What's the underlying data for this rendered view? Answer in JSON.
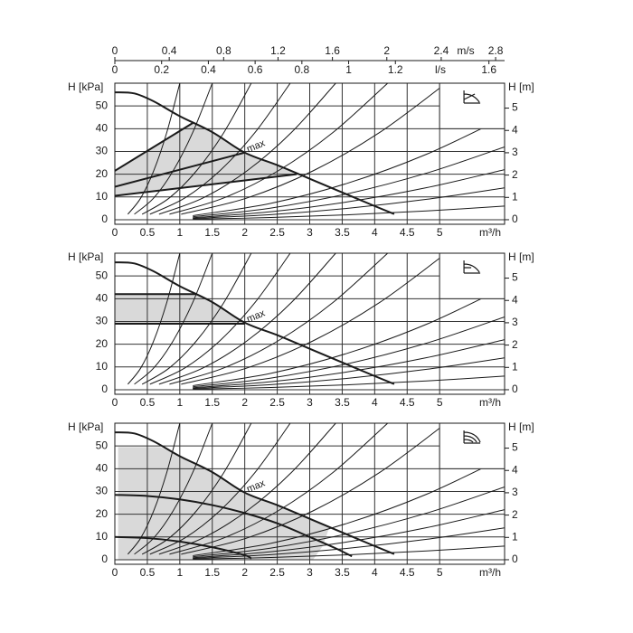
{
  "top_axes": [
    {
      "unit": "m/s",
      "xlim": [
        0,
        2.866
      ],
      "xticks": [
        0,
        0.4,
        0.8,
        1.2,
        1.6,
        2,
        2.4,
        2.8
      ]
    },
    {
      "unit": "l/s",
      "xlim": [
        0,
        1.667
      ],
      "xticks": [
        0,
        0.2,
        0.4,
        0.6,
        0.8,
        1,
        1.2,
        1.6
      ]
    }
  ],
  "system_curves": [
    {
      "x": [
        0.2,
        0.4,
        0.6,
        0.8,
        1.0
      ],
      "y": [
        2.4,
        9.6,
        21.6,
        38.4,
        60
      ]
    },
    {
      "x": [
        0.3,
        0.6,
        0.9,
        1.2,
        1.5
      ],
      "y": [
        2.4,
        9.6,
        21.6,
        38.4,
        60
      ]
    },
    {
      "x": [
        0.42,
        0.84,
        1.26,
        1.68,
        2.1
      ],
      "y": [
        2.4,
        9.6,
        21.6,
        38.4,
        60
      ]
    },
    {
      "x": [
        0.54,
        1.08,
        1.62,
        2.16,
        2.7
      ],
      "y": [
        2.4,
        9.6,
        21.6,
        38.4,
        60
      ]
    },
    {
      "x": [
        0.68,
        1.36,
        2.04,
        2.72,
        3.4
      ],
      "y": [
        2.4,
        9.6,
        21.6,
        38.4,
        60
      ]
    },
    {
      "x": [
        0.84,
        1.68,
        2.52,
        3.36,
        4.2
      ],
      "y": [
        2.4,
        9.6,
        21.6,
        38.4,
        60
      ]
    },
    {
      "x": [
        1.02,
        2.04,
        3.06,
        4.08,
        5.1
      ],
      "y": [
        2.4,
        9.6,
        21.6,
        38.4,
        60
      ]
    },
    {
      "x": [
        1.2,
        2.4,
        3.6,
        4.8,
        6.0
      ],
      "y": [
        1.8,
        7.2,
        16.2,
        28.8,
        45
      ]
    },
    {
      "x": [
        1.2,
        2.4,
        3.6,
        4.8,
        6.0
      ],
      "y": [
        1.28,
        5.12,
        11.52,
        20.48,
        32
      ]
    },
    {
      "x": [
        1.2,
        2.4,
        3.6,
        4.8,
        6.0
      ],
      "y": [
        0.88,
        3.52,
        7.92,
        14.08,
        22
      ]
    },
    {
      "x": [
        1.2,
        2.4,
        3.6,
        4.8,
        6.0
      ],
      "y": [
        0.56,
        2.24,
        5.04,
        8.96,
        14
      ]
    },
    {
      "x": [
        1.2,
        2.4,
        3.6,
        4.8,
        6.0
      ],
      "y": [
        0.24,
        0.96,
        2.16,
        3.84,
        6
      ]
    }
  ],
  "chart_data": [
    {
      "type": "line",
      "xlabel": "m³/h",
      "ylabel": "H [kPa]",
      "y2label": "H [m]",
      "curve_label": "max",
      "xlim": [
        0,
        6
      ],
      "xticks": [
        0,
        0.5,
        1,
        1.5,
        2,
        2.5,
        3,
        3.5,
        4,
        4.5,
        5
      ],
      "ylim": [
        -2,
        60
      ],
      "yticks": [
        0,
        10,
        20,
        30,
        40,
        50
      ],
      "y2lim": [
        -0.204,
        6.116
      ],
      "y2ticks": [
        0,
        1,
        2,
        3,
        4,
        5
      ],
      "grid": true,
      "areas": [
        {
          "color": "#d9d9d9",
          "x": [
            0,
            0,
            1.2,
            1.5,
            2,
            2.5,
            2.8
          ],
          "y": [
            10.5,
            21.5,
            42.5,
            38.5,
            29.5,
            24,
            20
          ]
        }
      ],
      "series": [
        {
          "color": "#1a1a1a",
          "x": [
            0,
            0.3,
            0.6,
            1,
            1.5,
            2,
            2.5,
            3,
            3.5,
            4,
            4.3
          ],
          "values": [
            56,
            55.5,
            52,
            45.5,
            38.5,
            29.5,
            24,
            18,
            12,
            6,
            2.5
          ]
        },
        {
          "color": "#1a1a1a",
          "x": [
            0,
            1.2
          ],
          "values": [
            21.5,
            42.5
          ]
        },
        {
          "color": "#1a1a1a",
          "x": [
            0,
            2
          ],
          "values": [
            14.5,
            29.5
          ]
        },
        {
          "color": "#1a1a1a",
          "x": [
            0,
            2.8
          ],
          "values": [
            10.5,
            20
          ]
        }
      ]
    },
    {
      "type": "line",
      "xlabel": "m³/h",
      "ylabel": "H [kPa]",
      "y2label": "H [m]",
      "curve_label": "max",
      "xlim": [
        0,
        6
      ],
      "xticks": [
        0,
        0.5,
        1,
        1.5,
        2,
        2.5,
        3,
        3.5,
        4,
        4.5,
        5
      ],
      "ylim": [
        -2,
        60
      ],
      "yticks": [
        0,
        10,
        20,
        30,
        40,
        50
      ],
      "y2lim": [
        -0.204,
        6.116
      ],
      "y2ticks": [
        0,
        1,
        2,
        3,
        4,
        5
      ],
      "grid": true,
      "areas": [
        {
          "color": "#d9d9d9",
          "x": [
            0,
            0,
            1.25,
            1.5,
            2,
            2
          ],
          "y": [
            29,
            42,
            42,
            38.5,
            29.5,
            29
          ]
        }
      ],
      "series": [
        {
          "color": "#1a1a1a",
          "x": [
            0,
            0.3,
            0.6,
            1,
            1.5,
            2,
            2.5,
            3,
            3.5,
            4,
            4.3
          ],
          "values": [
            56,
            55.5,
            52,
            45.5,
            38.5,
            29.5,
            24,
            18,
            12,
            6,
            2.5
          ]
        },
        {
          "color": "#1a1a1a",
          "x": [
            0,
            1.25
          ],
          "values": [
            42,
            42
          ]
        },
        {
          "color": "#1a1a1a",
          "x": [
            0,
            2
          ],
          "values": [
            29,
            29
          ]
        }
      ]
    },
    {
      "type": "line",
      "xlabel": "m³/h",
      "ylabel": "H [kPa]",
      "y2label": "H [m]",
      "curve_label": "max",
      "xlim": [
        0,
        6
      ],
      "xticks": [
        0,
        0.5,
        1,
        1.5,
        2,
        2.5,
        3,
        3.5,
        4,
        4.5,
        5
      ],
      "ylim": [
        -2,
        60
      ],
      "yticks": [
        0,
        10,
        20,
        30,
        40,
        50
      ],
      "y2lim": [
        -0.204,
        6.116
      ],
      "y2ticks": [
        0,
        1,
        2,
        3,
        4,
        5
      ],
      "grid": true,
      "areas": [
        {
          "color": "#d9d9d9",
          "x": [
            0.05,
            0.7,
            1,
            1.5,
            2,
            2.5,
            3,
            3.3,
            3.2,
            3.05,
            0.05
          ],
          "y": [
            49.5,
            49.5,
            45.5,
            38.5,
            29.5,
            24,
            18,
            14,
            6,
            0,
            0
          ]
        }
      ],
      "series": [
        {
          "color": "#1a1a1a",
          "x": [
            0,
            0.3,
            0.6,
            1,
            1.5,
            2,
            2.5,
            3,
            3.5,
            4,
            4.3
          ],
          "values": [
            56,
            55.5,
            52,
            45.5,
            38.5,
            29.5,
            24,
            18,
            12,
            6,
            2.5
          ]
        },
        {
          "color": "#1a1a1a",
          "x": [
            0,
            0.5,
            1,
            1.5,
            2,
            2.5,
            3,
            3.4,
            3.65
          ],
          "values": [
            28.5,
            28,
            26.5,
            24,
            20.5,
            16,
            10,
            5,
            1.5
          ]
        },
        {
          "color": "#1a1a1a",
          "x": [
            0,
            0.5,
            1,
            1.5,
            2,
            2.1
          ],
          "values": [
            10,
            9.5,
            8,
            5.5,
            2,
            0.5
          ]
        }
      ]
    }
  ]
}
